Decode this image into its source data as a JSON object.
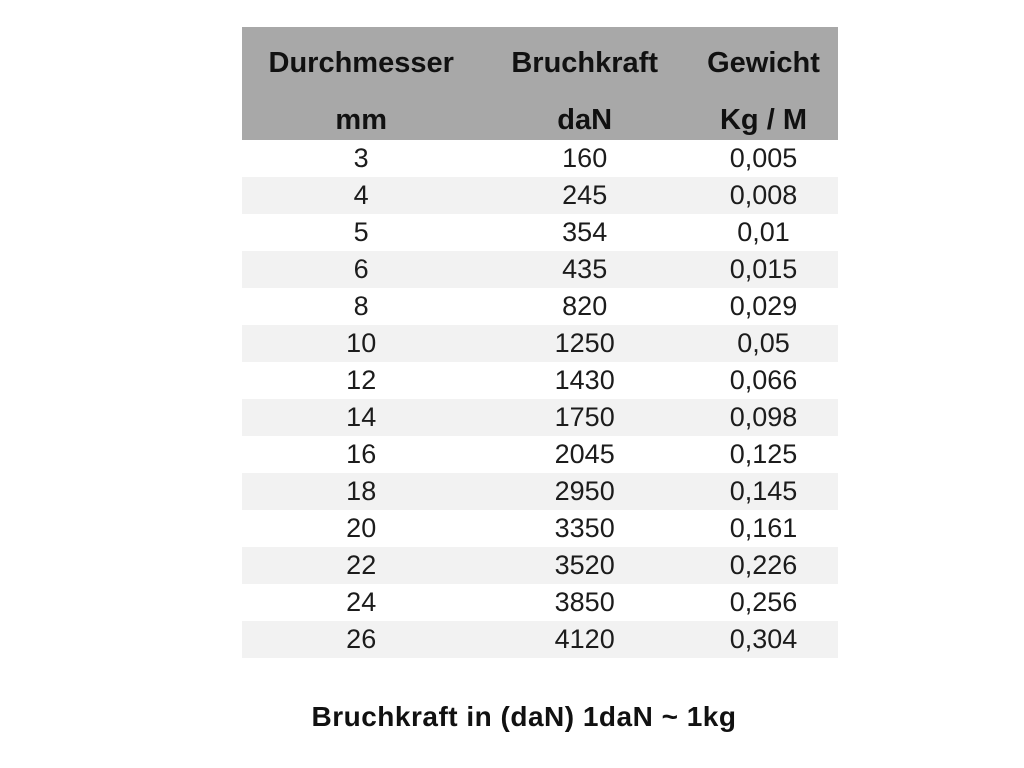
{
  "chart_data": {
    "type": "table",
    "columns": [
      {
        "label": "Durchmesser",
        "unit": "mm"
      },
      {
        "label": "Bruchkraft",
        "unit": "daN"
      },
      {
        "label": "Gewicht",
        "unit": "Kg / M"
      }
    ],
    "rows": [
      [
        "3",
        "160",
        "0,005"
      ],
      [
        "4",
        "245",
        "0,008"
      ],
      [
        "5",
        "354",
        "0,01"
      ],
      [
        "6",
        "435",
        "0,015"
      ],
      [
        "8",
        "820",
        "0,029"
      ],
      [
        "10",
        "1250",
        "0,05"
      ],
      [
        "12",
        "1430",
        "0,066"
      ],
      [
        "14",
        "1750",
        "0,098"
      ],
      [
        "16",
        "2045",
        "0,125"
      ],
      [
        "18",
        "2950",
        "0,145"
      ],
      [
        "20",
        "3350",
        "0,161"
      ],
      [
        "22",
        "3520",
        "0,226"
      ],
      [
        "24",
        "3850",
        "0,256"
      ],
      [
        "26",
        "4120",
        "0,304"
      ]
    ],
    "caption": "Bruchkraft in (daN) 1daN ~ 1kg",
    "layout_hints": {
      "header_lines": 2,
      "stripe_pattern": "second-row-shaded",
      "alignment": "center"
    }
  },
  "colors": {
    "header_bg": "#a8a8a8",
    "stripe_bg": "#f2f2f2",
    "text": "#1c1c1c"
  }
}
